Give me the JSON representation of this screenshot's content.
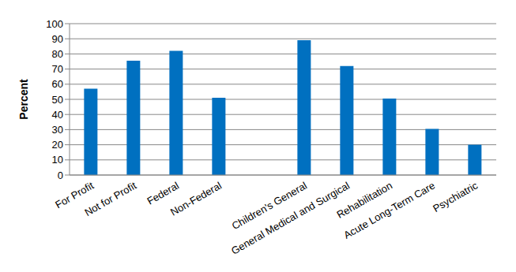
{
  "chart_data": {
    "type": "bar",
    "y_label": "Percent",
    "categories": [
      "For Profit",
      "Not for Profit",
      "Federal",
      "Non-Federal",
      null,
      "Children's General",
      "General Medical and Surgical",
      "Rehabilitation",
      "Acute Long-Term Care",
      "Psychiatric"
    ],
    "values": [
      57,
      75.5,
      82,
      51,
      null,
      89,
      72,
      50.5,
      30.5,
      20
    ],
    "color": "#0070c0",
    "ylim": [
      0,
      100
    ],
    "yticks": [
      0,
      10,
      20,
      30,
      40,
      50,
      60,
      70,
      80,
      90,
      100
    ],
    "grid": true
  }
}
